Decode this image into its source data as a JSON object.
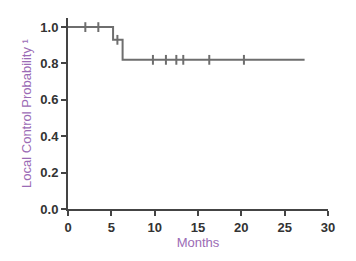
{
  "chart_data": {
    "type": "line",
    "x_label": "Months",
    "y_label": "Local Control Probability ¹",
    "xlim": [
      0,
      30
    ],
    "xticks": [
      0,
      5,
      10,
      15,
      20,
      25,
      30
    ],
    "ylim": [
      0,
      1.05
    ],
    "yticks": [
      {
        "value": 0,
        "label": "0.0"
      },
      {
        "value": 0.2,
        "label": "0.2"
      },
      {
        "value": 0.4,
        "label": "0.4"
      },
      {
        "value": 0.6,
        "label": "0.6"
      },
      {
        "value": 0.8,
        "label": "0.8"
      },
      {
        "value": 1.0,
        "label": "1.0"
      }
    ],
    "grid": false,
    "series": [
      {
        "type": "line",
        "line_style": "step",
        "color": "#6e6e6e",
        "x": [
          0,
          5.2,
          6.3,
          27.3
        ],
        "values": [
          1.0,
          0.93,
          0.82,
          0.82
        ]
      },
      {
        "type": "scatter",
        "marker": "tick",
        "color": "#6e6e6e",
        "x": [
          2,
          3.5,
          5.7,
          9.8,
          11.3,
          12.5,
          13.3,
          16.3,
          20.3
        ],
        "values": [
          1.0,
          1.0,
          0.93,
          0.82,
          0.82,
          0.82,
          0.82,
          0.82,
          0.82
        ]
      }
    ]
  }
}
